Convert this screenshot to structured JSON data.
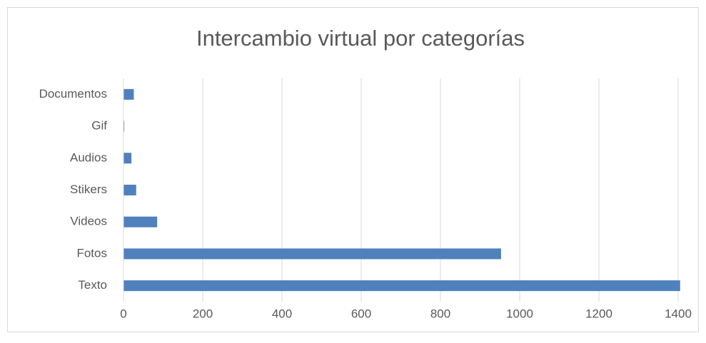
{
  "chart_data": {
    "type": "barh",
    "title": "Intercambio virtual por categorías",
    "categories": [
      "Texto",
      "Fotos",
      "Videos",
      "Stikers",
      "Audios",
      "Gif",
      "Documentos"
    ],
    "values": [
      1405,
      953,
      85,
      32,
      20,
      2,
      26
    ],
    "color": "#4f81bd",
    "xlim": [
      0,
      1400
    ],
    "xticks": [
      0,
      200,
      400,
      600,
      800,
      1000,
      1200,
      1400
    ],
    "grid": true
  }
}
